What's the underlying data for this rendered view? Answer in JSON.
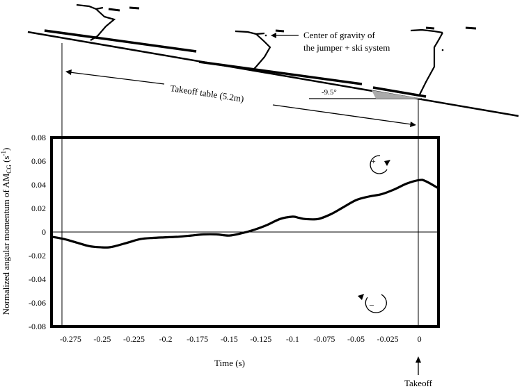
{
  "chart_data": {
    "type": "line",
    "xlabel": "Time (s)",
    "ylabel_main": "Normalized angular momentum of AM",
    "ylabel_sub": "CG",
    "ylabel_unit_pre": " (s",
    "ylabel_unit_sup": "-1",
    "ylabel_unit_post": ")",
    "xlim": [
      -0.29,
      0.015
    ],
    "ylim": [
      -0.08,
      0.08
    ],
    "x_ticks": [
      -0.275,
      -0.25,
      -0.225,
      -0.2,
      -0.175,
      -0.15,
      -0.125,
      -0.1,
      -0.075,
      -0.05,
      -0.025,
      0
    ],
    "x_tick_labels": [
      "-0.275",
      "-0.25",
      "-0.225",
      "-0.2",
      "-0.175",
      "-0.15",
      "-0.125",
      "-0.1",
      "-0.075",
      "-0.05",
      "-0.025",
      "0"
    ],
    "y_ticks": [
      0.08,
      0.06,
      0.04,
      0.02,
      0,
      -0.02,
      -0.04,
      -0.06,
      -0.08
    ],
    "y_tick_labels": [
      "0.08",
      "0.06",
      "0.04",
      "0.02",
      "0",
      "-0.02",
      "-0.04",
      "-0.06",
      "-0.08"
    ],
    "grid": false,
    "series": [
      {
        "x": [
          -0.29,
          -0.28,
          -0.27,
          -0.26,
          -0.25,
          -0.245,
          -0.24,
          -0.23,
          -0.22,
          -0.21,
          -0.2,
          -0.19,
          -0.18,
          -0.17,
          -0.16,
          -0.15,
          -0.14,
          -0.13,
          -0.12,
          -0.11,
          -0.1,
          -0.095,
          -0.09,
          -0.08,
          -0.07,
          -0.06,
          -0.05,
          -0.04,
          -0.03,
          -0.02,
          -0.01,
          0,
          0.005,
          0.015
        ],
        "y": [
          -0.004,
          -0.006,
          -0.009,
          -0.012,
          -0.013,
          -0.013,
          -0.012,
          -0.009,
          -0.006,
          -0.005,
          -0.0045,
          -0.004,
          -0.003,
          -0.002,
          -0.002,
          -0.003,
          -0.001,
          0.002,
          0.006,
          0.011,
          0.013,
          0.012,
          0.011,
          0.011,
          0.015,
          0.021,
          0.027,
          0.03,
          0.032,
          0.036,
          0.041,
          0.044,
          0.043,
          0.037
        ]
      }
    ],
    "reference_lines": {
      "zero": 0,
      "vertical": [
        -0.27,
        0
      ]
    },
    "icons": {
      "positive": "clockwise-arrow-icon",
      "negative": "counterclockwise-arrow-icon"
    },
    "positive_label": "+",
    "negative_label": "–"
  },
  "annotations": {
    "cg_line1": "Center of gravity of",
    "cg_line2": "the jumper + ski system",
    "takeoff_table": "Takeoff table (5.2m)",
    "angle": "-9.5°",
    "takeoff": "Takeoff"
  }
}
